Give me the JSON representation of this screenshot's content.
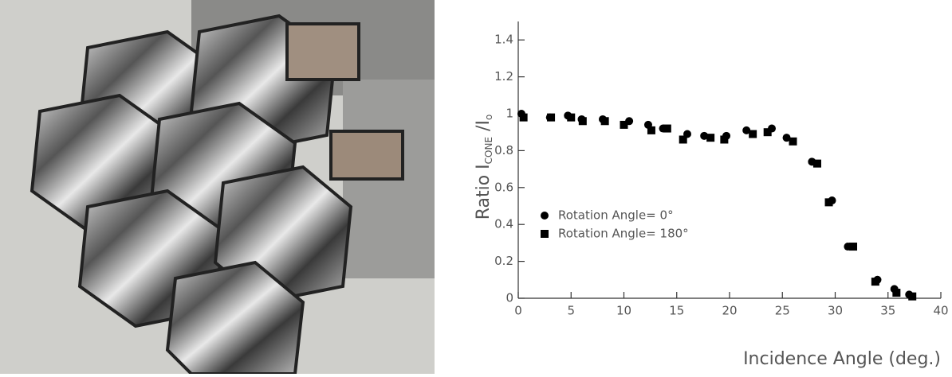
{
  "chart_data": {
    "type": "scatter",
    "xlabel": "Incidence Angle (deg.)",
    "ylabel": [
      "Ratio I",
      "CONE",
      " /I",
      "o"
    ],
    "xlim": [
      0,
      40
    ],
    "xticks": [
      0,
      5,
      10,
      15,
      20,
      25,
      30,
      35,
      40
    ],
    "ylim": [
      0,
      1.5
    ],
    "yticks": [
      0,
      0.2,
      0.4,
      0.6,
      0.8,
      1,
      1.2,
      1.4
    ],
    "legend": "left",
    "series": [
      {
        "name": "Rotation Angle= 0°",
        "marker": "circle",
        "color": "#000000",
        "x": [
          0.3,
          3,
          4.7,
          6,
          8,
          10.5,
          12.3,
          13.7,
          16,
          17.6,
          19.7,
          21.6,
          24,
          25.4,
          27.8,
          29.7,
          31.2,
          34,
          35.6,
          37
        ],
        "values": [
          1.0,
          0.98,
          0.99,
          0.97,
          0.97,
          0.96,
          0.94,
          0.92,
          0.89,
          0.88,
          0.88,
          0.91,
          0.92,
          0.87,
          0.74,
          0.53,
          0.28,
          0.1,
          0.05,
          0.02
        ]
      },
      {
        "name": "Rotation Angle= 180°",
        "marker": "square",
        "color": "#000000",
        "x": [
          0.5,
          3.1,
          5,
          6.1,
          8.2,
          10,
          12.6,
          14.1,
          15.6,
          18.2,
          19.5,
          22.2,
          23.6,
          26,
          28.3,
          29.4,
          31.7,
          33.8,
          35.8,
          37.3
        ],
        "values": [
          0.98,
          0.98,
          0.98,
          0.96,
          0.96,
          0.94,
          0.91,
          0.92,
          0.86,
          0.87,
          0.86,
          0.89,
          0.9,
          0.85,
          0.73,
          0.52,
          0.28,
          0.09,
          0.03,
          0.01
        ]
      }
    ]
  }
}
